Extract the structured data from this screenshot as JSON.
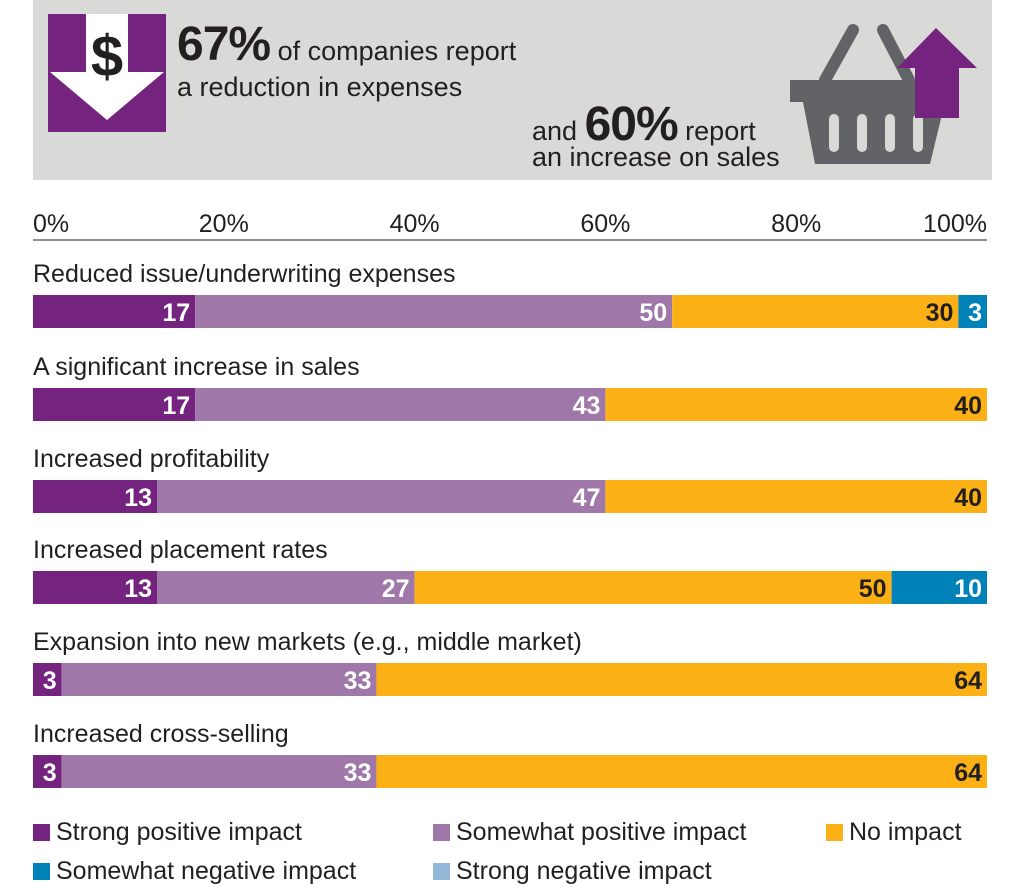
{
  "header": {
    "stat1_value": "67%",
    "stat1_line1": "of companies report",
    "stat1_line2": "a reduction in expenses",
    "stat2_prefix": "and",
    "stat2_value": "60%",
    "stat2_line1": "report",
    "stat2_line2": "an increase on sales",
    "dollar_symbol": "$",
    "icons": [
      "dollar-down-arrow-icon",
      "shopping-basket-up-arrow-icon"
    ]
  },
  "colors": {
    "banner": "#d9d9d7",
    "strong_positive": "#74237f",
    "somewhat_positive": "#a077a9",
    "no_impact": "#fbb116",
    "somewhat_negative": "#0081b8",
    "strong_negative": "#93b8d8",
    "basket": "#616366"
  },
  "chart_data": {
    "type": "bar",
    "orientation": "horizontal",
    "stacked": true,
    "xlim": [
      0,
      100
    ],
    "xticks": [
      "0%",
      "20%",
      "40%",
      "60%",
      "80%",
      "100%"
    ],
    "categories": [
      "Reduced issue/underwriting expenses",
      "A significant increase in sales",
      "Increased profitability",
      "Increased placement rates",
      "Expansion into new markets (e.g., middle market)",
      "Increased cross-selling"
    ],
    "series": [
      {
        "name": "Strong positive impact",
        "color": "#74237f",
        "label_color": "#ffffff",
        "values": [
          17,
          17,
          13,
          13,
          3,
          3
        ]
      },
      {
        "name": "Somewhat positive impact",
        "color": "#a077a9",
        "label_color": "#ffffff",
        "values": [
          50,
          43,
          47,
          27,
          33,
          33
        ]
      },
      {
        "name": "No impact",
        "color": "#fbb116",
        "label_color": "#231f20",
        "values": [
          30,
          40,
          40,
          50,
          64,
          64
        ]
      },
      {
        "name": "Somewhat negative impact",
        "color": "#0081b8",
        "label_color": "#ffffff",
        "values": [
          3,
          0,
          0,
          10,
          0,
          0
        ]
      },
      {
        "name": "Strong negative impact",
        "color": "#93b8d8",
        "label_color": "#ffffff",
        "values": [
          0,
          0,
          0,
          0,
          0,
          0
        ]
      }
    ],
    "legend": "bottom",
    "grid": false
  }
}
